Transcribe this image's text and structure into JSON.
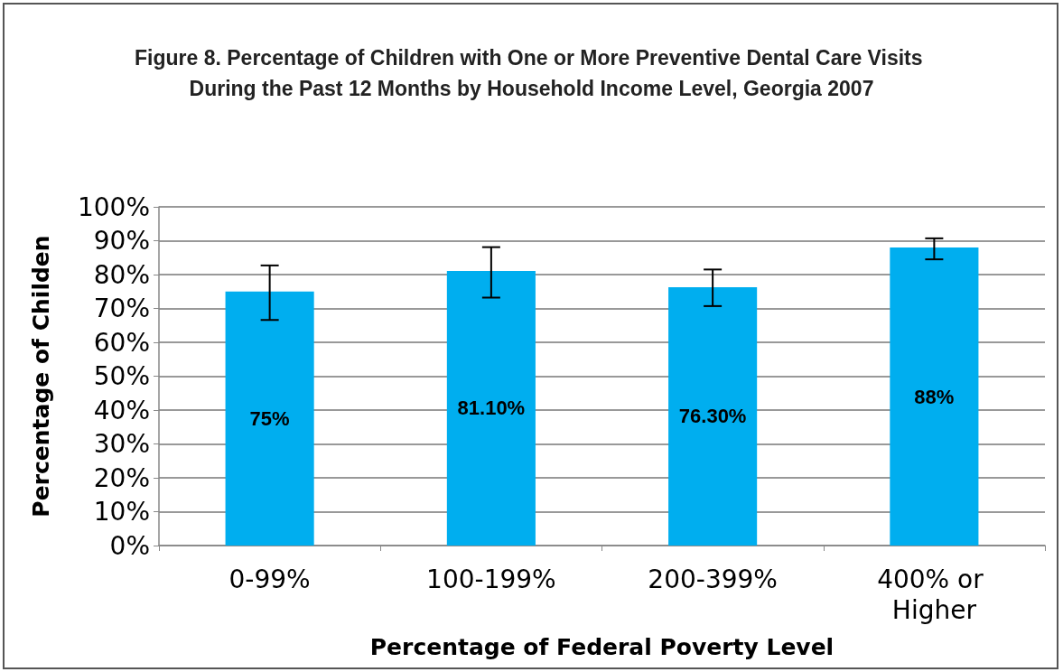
{
  "chart_data": {
    "type": "bar",
    "title": "Figure 8. Percentage of Children with One or More Preventive Dental Care Visits During the Past 12 Months by Household Income Level, Georgia 2007",
    "xlabel": "Percentage of Federal Poverty Level",
    "ylabel": "Percentage of Childen",
    "categories": [
      "0-99%",
      "100-199%",
      "200-399%",
      "400% or Higher"
    ],
    "values": [
      75,
      81.1,
      76.3,
      88
    ],
    "value_labels": [
      "75%",
      "81.10%",
      "76.30%",
      "88%"
    ],
    "errors": [
      [
        66.6,
        82.7
      ],
      [
        73.2,
        88.1
      ],
      [
        70.7,
        81.5
      ],
      [
        84.5,
        90.7
      ]
    ],
    "color": "#00aeef",
    "ylim": [
      0,
      100
    ],
    "yticks": [
      {
        "value": 0,
        "label": "0%"
      },
      {
        "value": 10,
        "label": "10%"
      },
      {
        "value": 20,
        "label": "20%"
      },
      {
        "value": 30,
        "label": "30%"
      },
      {
        "value": 40,
        "label": "40%"
      },
      {
        "value": 50,
        "label": "50%"
      },
      {
        "value": 60,
        "label": "60%"
      },
      {
        "value": 70,
        "label": "70%"
      },
      {
        "value": 80,
        "label": "80%"
      },
      {
        "value": 90,
        "label": "90%"
      },
      {
        "value": 100,
        "label": "100%"
      }
    ],
    "grid": "y"
  }
}
